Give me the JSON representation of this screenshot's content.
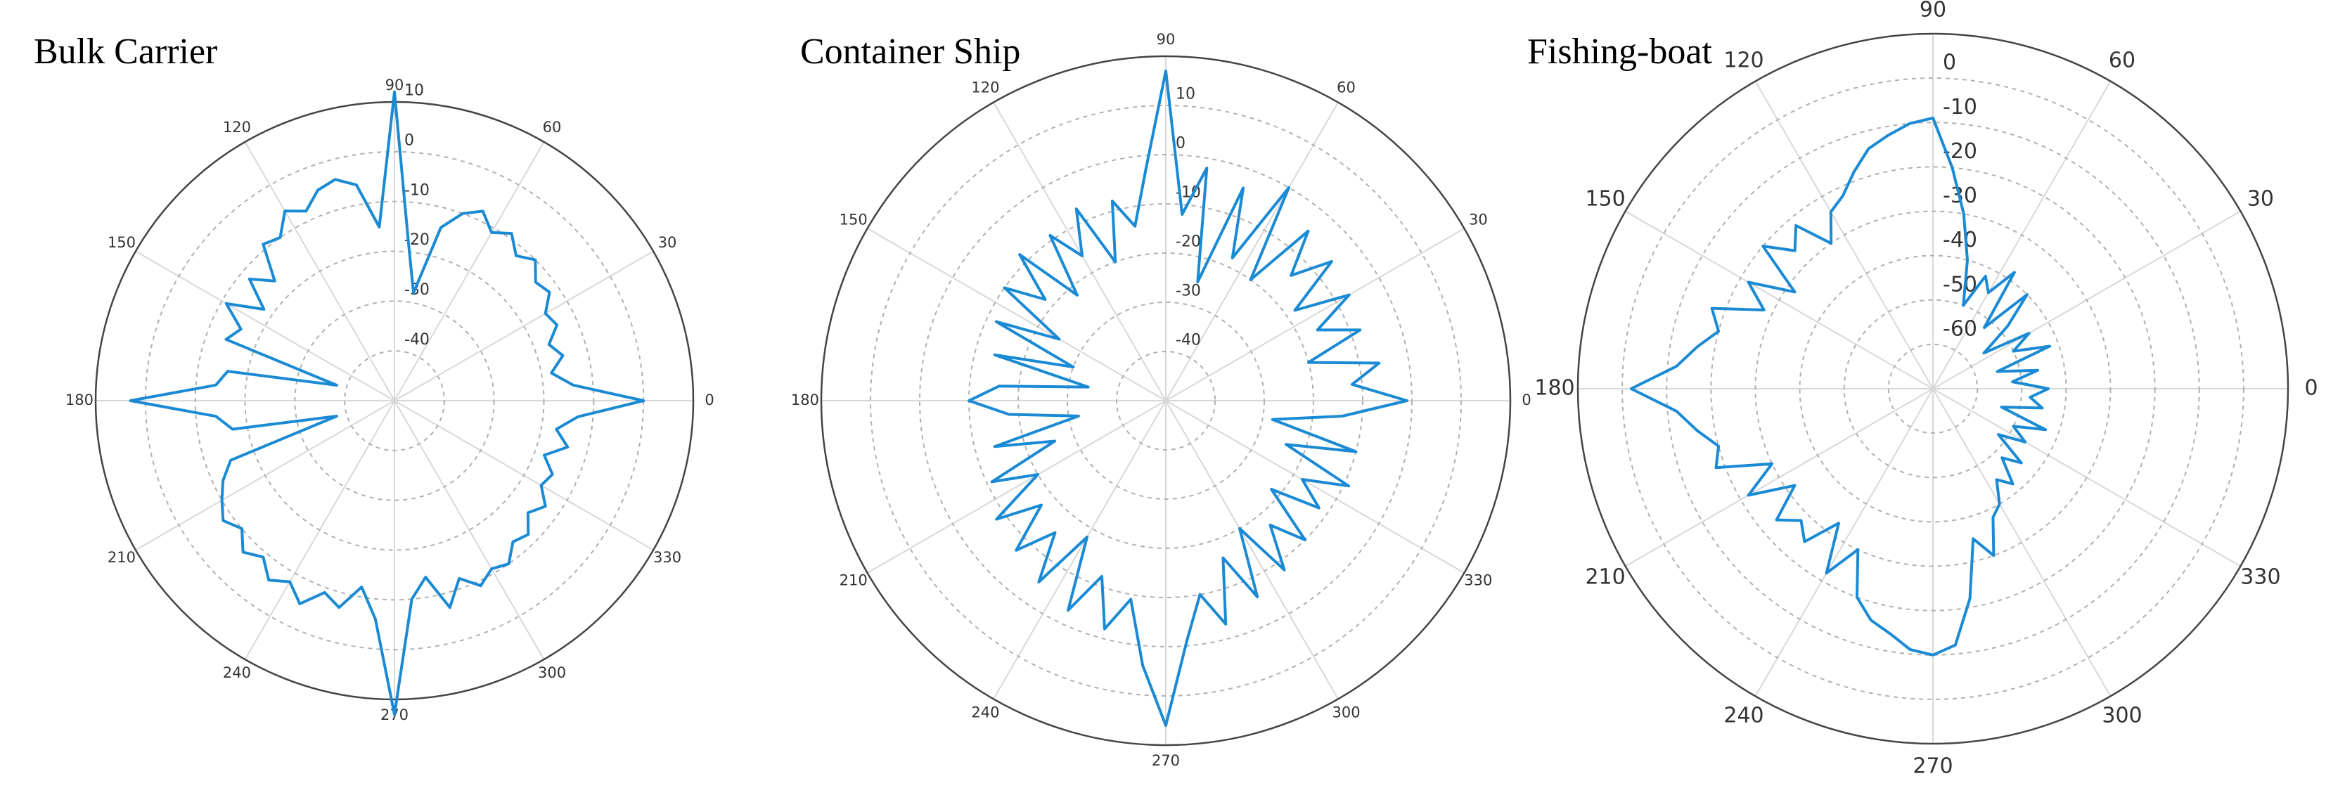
{
  "chart_data": [
    {
      "type": "polar",
      "title": "Bulk Carrier",
      "color": "#1a8ad4",
      "theta": [
        0,
        5,
        10,
        15,
        20,
        25,
        30,
        35,
        40,
        45,
        50,
        55,
        60,
        65,
        70,
        75,
        80,
        85,
        90,
        95,
        100,
        105,
        110,
        115,
        120,
        125,
        130,
        135,
        140,
        145,
        150,
        155,
        160,
        165,
        170,
        175,
        180,
        185,
        190,
        195,
        200,
        205,
        210,
        215,
        220,
        225,
        230,
        235,
        240,
        245,
        250,
        255,
        260,
        265,
        270,
        275,
        280,
        285,
        290,
        295,
        300,
        305,
        310,
        315,
        320,
        325,
        330,
        335,
        340,
        345,
        350,
        355
      ],
      "r": [
        0,
        -14,
        -18,
        -15,
        -17,
        -14,
        -15,
        -12,
        -13,
        -10,
        -12,
        -9,
        -11,
        -8,
        -10,
        -14,
        -28,
        -18,
        12,
        -15,
        -6,
        -4,
        -5,
        -8,
        -6,
        -10,
        -9,
        -16,
        -12,
        -18,
        -11,
        -16,
        -14,
        -38,
        -16,
        -14,
        3,
        -14,
        -17,
        -38,
        -15,
        -12,
        -10,
        -8,
        -10,
        -7,
        -9,
        -6,
        -8,
        -5,
        -9,
        -7,
        -12,
        -6,
        13,
        -10,
        -14,
        -7,
        -12,
        -9,
        -11,
        -10,
        -13,
        -12,
        -15,
        -13,
        -16,
        -15,
        -18,
        -14,
        -17,
        -13
      ],
      "rlim": [
        -50,
        10
      ],
      "rticks": [
        -40,
        -30,
        -20,
        -10,
        0,
        10
      ],
      "thetaticks": [
        0,
        30,
        60,
        90,
        120,
        150,
        180,
        210,
        240,
        270,
        300,
        330
      ]
    },
    {
      "type": "polar",
      "title": "Container Ship",
      "color": "#1a8ad4",
      "theta": [
        0,
        5,
        10,
        15,
        20,
        25,
        30,
        35,
        40,
        45,
        50,
        55,
        60,
        65,
        70,
        75,
        80,
        85,
        90,
        95,
        100,
        105,
        110,
        115,
        120,
        125,
        130,
        135,
        140,
        145,
        150,
        155,
        160,
        165,
        170,
        175,
        180,
        185,
        190,
        195,
        200,
        205,
        210,
        215,
        220,
        225,
        230,
        235,
        240,
        245,
        250,
        255,
        260,
        265,
        270,
        275,
        280,
        285,
        290,
        295,
        300,
        305,
        310,
        315,
        320,
        325,
        330,
        335,
        340,
        345,
        350,
        355
      ],
      "r": [
        -1,
        -12,
        -6,
        -20,
        -8,
        -16,
        -7,
        -18,
        -6,
        -14,
        -5,
        -20,
        0,
        -18,
        -4,
        -25,
        -2,
        -12,
        17,
        -3,
        -14,
        -8,
        -20,
        -7,
        -16,
        -9,
        -22,
        -8,
        -18,
        -10,
        -25,
        -12,
        -30,
        -14,
        -34,
        -16,
        -10,
        -18,
        -32,
        -14,
        -26,
        -11,
        -20,
        -8,
        -17,
        -7,
        -15,
        -5,
        -18,
        -3,
        -12,
        -2,
        -9,
        4,
        16,
        -1,
        -10,
        -3,
        -16,
        -6,
        -20,
        -8,
        -17,
        -10,
        -22,
        -12,
        -18,
        -9,
        -24,
        -10,
        -28,
        -14
      ],
      "rlim": [
        -50,
        20
      ],
      "rticks": [
        -40,
        -30,
        -20,
        -10,
        0,
        10
      ],
      "thetaticks": [
        0,
        30,
        60,
        90,
        120,
        150,
        180,
        210,
        240,
        270,
        300,
        330
      ]
    },
    {
      "type": "polar",
      "title": "Fishing-boat",
      "color": "#1a8ad4",
      "theta": [
        0,
        5,
        10,
        15,
        20,
        25,
        30,
        35,
        40,
        45,
        50,
        55,
        60,
        65,
        70,
        75,
        80,
        85,
        90,
        95,
        100,
        105,
        110,
        115,
        120,
        125,
        130,
        135,
        140,
        145,
        150,
        155,
        160,
        165,
        170,
        175,
        180,
        185,
        190,
        195,
        200,
        205,
        210,
        215,
        220,
        225,
        230,
        235,
        240,
        245,
        250,
        255,
        260,
        265,
        270,
        275,
        280,
        285,
        290,
        295,
        300,
        305,
        310,
        315,
        320,
        325,
        330,
        335,
        340,
        345,
        350,
        355
      ],
      "r": [
        -44,
        -52,
        -46,
        -55,
        -42,
        -50,
        -45,
        -56,
        -48,
        -40,
        -52,
        -38,
        -45,
        -42,
        -50,
        -40,
        -30,
        -20,
        -9,
        -10,
        -12,
        -14,
        -18,
        -22,
        -24,
        -30,
        -22,
        -26,
        -20,
        -32,
        -22,
        -28,
        -17,
        -20,
        -16,
        -12,
        -2,
        -12,
        -16,
        -20,
        -18,
        -30,
        -22,
        -32,
        -24,
        -28,
        -25,
        -33,
        -22,
        -30,
        -20,
        -16,
        -14,
        -11,
        -10,
        -12,
        -22,
        -35,
        -30,
        -38,
        -40,
        -45,
        -42,
        -48,
        -44,
        -52,
        -46,
        -50,
        -43,
        -54,
        -45,
        -48
      ],
      "rlim": [
        -70,
        10
      ],
      "rticks": [
        -60,
        -50,
        -40,
        -30,
        -20,
        -10,
        0
      ],
      "thetaticks": [
        0,
        30,
        60,
        90,
        120,
        150,
        180,
        210,
        240,
        270,
        300,
        330
      ]
    }
  ]
}
